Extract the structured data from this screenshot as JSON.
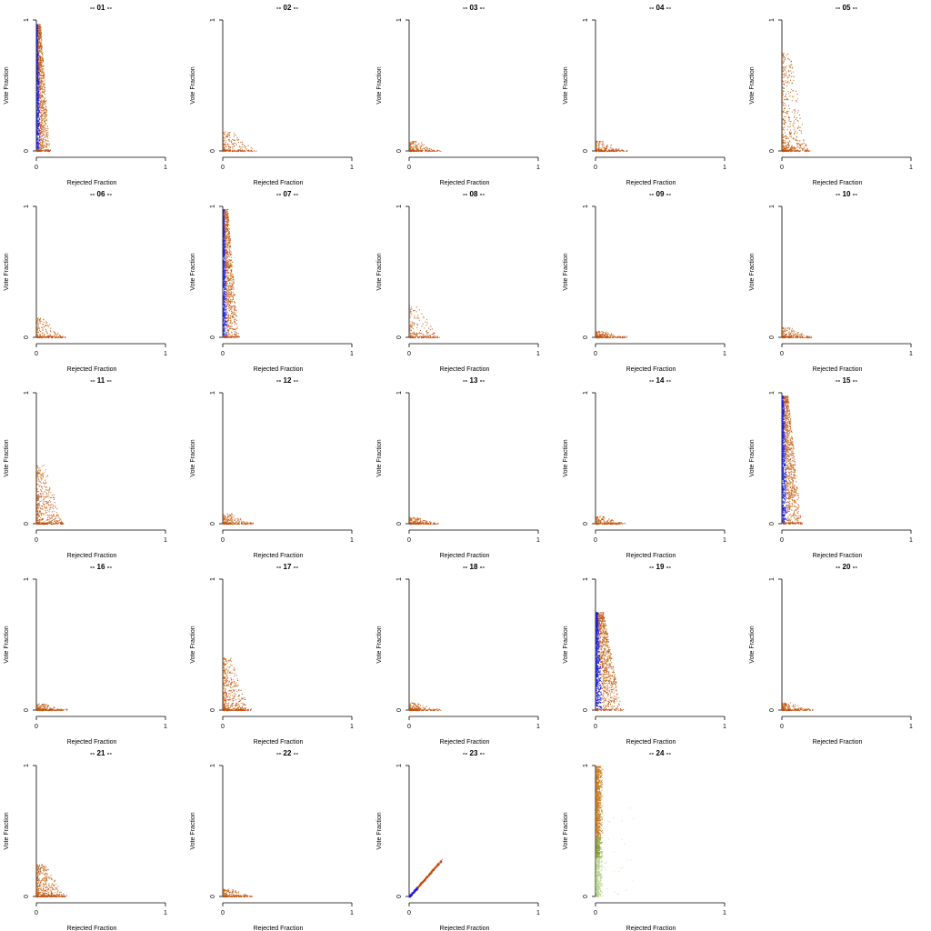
{
  "figure": {
    "panel_count": 24,
    "columns": 5,
    "point_palette": {
      "low_rejection": "#1f1fd6",
      "mid": "#c04a10",
      "high": "#c8781a",
      "light": "#b8d48c"
    }
  },
  "chart_data": [
    {
      "type": "scatter",
      "title": "-- 01 --",
      "xlabel": "Rejected Fraction",
      "ylabel": "Vote Fraction",
      "xlim": [
        0,
        1
      ],
      "ylim": [
        0,
        1
      ],
      "xticks": [
        "0",
        "1"
      ],
      "yticks": [
        "0",
        "1"
      ],
      "cluster": {
        "x_max": 0.1,
        "y_max": 0.97,
        "density": "high",
        "dominant_color": "blue-orange"
      }
    },
    {
      "type": "scatter",
      "title": "-- 02 --",
      "xlabel": "Rejected Fraction",
      "ylabel": "Vote Fraction",
      "xlim": [
        0,
        1
      ],
      "ylim": [
        0,
        1
      ],
      "xticks": [
        "0",
        "1"
      ],
      "yticks": [
        "0",
        "1"
      ],
      "cluster": {
        "x_max": 0.25,
        "y_max": 0.15,
        "density": "low",
        "dominant_color": "orange"
      }
    },
    {
      "type": "scatter",
      "title": "-- 03 --",
      "xlabel": "Rejected Fraction",
      "ylabel": "Vote Fraction",
      "xlim": [
        0,
        1
      ],
      "ylim": [
        0,
        1
      ],
      "xticks": [
        "0",
        "1"
      ],
      "yticks": [
        "0",
        "1"
      ],
      "cluster": {
        "x_max": 0.22,
        "y_max": 0.08,
        "density": "low",
        "dominant_color": "orange"
      }
    },
    {
      "type": "scatter",
      "title": "-- 04 --",
      "xlabel": "Rejected Fraction",
      "ylabel": "Vote Fraction",
      "xlim": [
        0,
        1
      ],
      "ylim": [
        0,
        1
      ],
      "xticks": [
        "0",
        "1"
      ],
      "yticks": [
        "0",
        "1"
      ],
      "cluster": {
        "x_max": 0.22,
        "y_max": 0.08,
        "density": "low",
        "dominant_color": "orange"
      }
    },
    {
      "type": "scatter",
      "title": "-- 05 --",
      "xlabel": "Rejected Fraction",
      "ylabel": "Vote Fraction",
      "xlim": [
        0,
        1
      ],
      "ylim": [
        0,
        1
      ],
      "xticks": [
        "0",
        "1"
      ],
      "yticks": [
        "0",
        "1"
      ],
      "cluster": {
        "x_max": 0.2,
        "y_max": 0.75,
        "density": "medium",
        "dominant_color": "orange"
      }
    },
    {
      "type": "scatter",
      "title": "-- 06 --",
      "xlabel": "Rejected Fraction",
      "ylabel": "Vote Fraction",
      "xlim": [
        0,
        1
      ],
      "ylim": [
        0,
        1
      ],
      "xticks": [
        "0",
        "1"
      ],
      "yticks": [
        "0",
        "1"
      ],
      "cluster": {
        "x_max": 0.2,
        "y_max": 0.15,
        "density": "low",
        "dominant_color": "orange"
      }
    },
    {
      "type": "scatter",
      "title": "-- 07 --",
      "xlabel": "Rejected Fraction",
      "ylabel": "Vote Fraction",
      "xlim": [
        0,
        1
      ],
      "ylim": [
        0,
        1
      ],
      "xticks": [
        "0",
        "1"
      ],
      "yticks": [
        "0",
        "1"
      ],
      "cluster": {
        "x_max": 0.12,
        "y_max": 0.98,
        "density": "high",
        "dominant_color": "blue-orange"
      }
    },
    {
      "type": "scatter",
      "title": "-- 08 --",
      "xlabel": "Rejected Fraction",
      "ylabel": "Vote Fraction",
      "xlim": [
        0,
        1
      ],
      "ylim": [
        0,
        1
      ],
      "xticks": [
        "0",
        "1"
      ],
      "yticks": [
        "0",
        "1"
      ],
      "cluster": {
        "x_max": 0.22,
        "y_max": 0.25,
        "density": "low",
        "dominant_color": "orange"
      }
    },
    {
      "type": "scatter",
      "title": "-- 09 --",
      "xlabel": "Rejected Fraction",
      "ylabel": "Vote Fraction",
      "xlim": [
        0,
        1
      ],
      "ylim": [
        0,
        1
      ],
      "xticks": [
        "0",
        "1"
      ],
      "yticks": [
        "0",
        "1"
      ],
      "cluster": {
        "x_max": 0.22,
        "y_max": 0.05,
        "density": "low",
        "dominant_color": "orange"
      }
    },
    {
      "type": "scatter",
      "title": "-- 10 --",
      "xlabel": "Rejected Fraction",
      "ylabel": "Vote Fraction",
      "xlim": [
        0,
        1
      ],
      "ylim": [
        0,
        1
      ],
      "xticks": [
        "0",
        "1"
      ],
      "yticks": [
        "0",
        "1"
      ],
      "cluster": {
        "x_max": 0.22,
        "y_max": 0.08,
        "density": "low",
        "dominant_color": "orange"
      }
    },
    {
      "type": "scatter",
      "title": "-- 11 --",
      "xlabel": "Rejected Fraction",
      "ylabel": "Vote Fraction",
      "xlim": [
        0,
        1
      ],
      "ylim": [
        0,
        1
      ],
      "xticks": [
        "0",
        "1"
      ],
      "yticks": [
        "0",
        "1"
      ],
      "cluster": {
        "x_max": 0.2,
        "y_max": 0.45,
        "density": "medium",
        "dominant_color": "orange"
      }
    },
    {
      "type": "scatter",
      "title": "-- 12 --",
      "xlabel": "Rejected Fraction",
      "ylabel": "Vote Fraction",
      "xlim": [
        0,
        1
      ],
      "ylim": [
        0,
        1
      ],
      "xticks": [
        "0",
        "1"
      ],
      "yticks": [
        "0",
        "1"
      ],
      "cluster": {
        "x_max": 0.22,
        "y_max": 0.08,
        "density": "low",
        "dominant_color": "orange"
      }
    },
    {
      "type": "scatter",
      "title": "-- 13 --",
      "xlabel": "Rejected Fraction",
      "ylabel": "Vote Fraction",
      "xlim": [
        0,
        1
      ],
      "ylim": [
        0,
        1
      ],
      "xticks": [
        "0",
        "1"
      ],
      "yticks": [
        "0",
        "1"
      ],
      "cluster": {
        "x_max": 0.22,
        "y_max": 0.05,
        "density": "low",
        "dominant_color": "orange"
      }
    },
    {
      "type": "scatter",
      "title": "-- 14 --",
      "xlabel": "Rejected Fraction",
      "ylabel": "Vote Fraction",
      "xlim": [
        0,
        1
      ],
      "ylim": [
        0,
        1
      ],
      "xticks": [
        "0",
        "1"
      ],
      "yticks": [
        "0",
        "1"
      ],
      "cluster": {
        "x_max": 0.22,
        "y_max": 0.06,
        "density": "low",
        "dominant_color": "orange"
      }
    },
    {
      "type": "scatter",
      "title": "-- 15 --",
      "xlabel": "Rejected Fraction",
      "ylabel": "Vote Fraction",
      "xlim": [
        0,
        1
      ],
      "ylim": [
        0,
        1
      ],
      "xticks": [
        "0",
        "1"
      ],
      "yticks": [
        "0",
        "1"
      ],
      "cluster": {
        "x_max": 0.15,
        "y_max": 0.98,
        "density": "high",
        "dominant_color": "blue-orange"
      }
    },
    {
      "type": "scatter",
      "title": "-- 16 --",
      "xlabel": "Rejected Fraction",
      "ylabel": "Vote Fraction",
      "xlim": [
        0,
        1
      ],
      "ylim": [
        0,
        1
      ],
      "xticks": [
        "0",
        "1"
      ],
      "yticks": [
        "0",
        "1"
      ],
      "cluster": {
        "x_max": 0.22,
        "y_max": 0.05,
        "density": "low",
        "dominant_color": "orange"
      }
    },
    {
      "type": "scatter",
      "title": "-- 17 --",
      "xlabel": "Rejected Fraction",
      "ylabel": "Vote Fraction",
      "xlim": [
        0,
        1
      ],
      "ylim": [
        0,
        1
      ],
      "xticks": [
        "0",
        "1"
      ],
      "yticks": [
        "0",
        "1"
      ],
      "cluster": {
        "x_max": 0.2,
        "y_max": 0.4,
        "density": "medium",
        "dominant_color": "orange"
      }
    },
    {
      "type": "scatter",
      "title": "-- 18 --",
      "xlabel": "Rejected Fraction",
      "ylabel": "Vote Fraction",
      "xlim": [
        0,
        1
      ],
      "ylim": [
        0,
        1
      ],
      "xticks": [
        "0",
        "1"
      ],
      "yticks": [
        "0",
        "1"
      ],
      "cluster": {
        "x_max": 0.22,
        "y_max": 0.06,
        "density": "low",
        "dominant_color": "orange"
      }
    },
    {
      "type": "scatter",
      "title": "-- 19 --",
      "xlabel": "Rejected Fraction",
      "ylabel": "Vote Fraction",
      "xlim": [
        0,
        1
      ],
      "ylim": [
        0,
        1
      ],
      "xticks": [
        "0",
        "1"
      ],
      "yticks": [
        "0",
        "1"
      ],
      "cluster": {
        "x_max": 0.2,
        "y_max": 0.75,
        "density": "high",
        "dominant_color": "blue-orange"
      }
    },
    {
      "type": "scatter",
      "title": "-- 20 --",
      "xlabel": "Rejected Fraction",
      "ylabel": "Vote Fraction",
      "xlim": [
        0,
        1
      ],
      "ylim": [
        0,
        1
      ],
      "xticks": [
        "0",
        "1"
      ],
      "yticks": [
        "0",
        "1"
      ],
      "cluster": {
        "x_max": 0.22,
        "y_max": 0.06,
        "density": "low",
        "dominant_color": "orange"
      }
    },
    {
      "type": "scatter",
      "title": "-- 21 --",
      "xlabel": "Rejected Fraction",
      "ylabel": "Vote Fraction",
      "xlim": [
        0,
        1
      ],
      "ylim": [
        0,
        1
      ],
      "xticks": [
        "0",
        "1"
      ],
      "yticks": [
        "0",
        "1"
      ],
      "cluster": {
        "x_max": 0.22,
        "y_max": 0.25,
        "density": "medium",
        "dominant_color": "orange"
      }
    },
    {
      "type": "scatter",
      "title": "-- 22 --",
      "xlabel": "Rejected Fraction",
      "ylabel": "Vote Fraction",
      "xlim": [
        0,
        1
      ],
      "ylim": [
        0,
        1
      ],
      "xticks": [
        "0",
        "1"
      ],
      "yticks": [
        "0",
        "1"
      ],
      "cluster": {
        "x_max": 0.22,
        "y_max": 0.06,
        "density": "low",
        "dominant_color": "orange"
      }
    },
    {
      "type": "scatter",
      "title": "-- 23 --",
      "xlabel": "Rejected Fraction",
      "ylabel": "Vote Fraction",
      "xlim": [
        0,
        1
      ],
      "ylim": [
        0,
        1
      ],
      "xticks": [
        "0",
        "1"
      ],
      "yticks": [
        "0",
        "1"
      ],
      "cluster": {
        "shape": "diagonal",
        "x_max": 0.25,
        "y_max": 0.28,
        "density": "medium",
        "dominant_color": "blue-orange"
      }
    },
    {
      "type": "scatter",
      "title": "-- 24 --",
      "xlabel": "Rejected Fraction",
      "ylabel": "Vote Fraction",
      "xlim": [
        0,
        1
      ],
      "ylim": [
        0,
        1
      ],
      "xticks": [
        "0",
        "1"
      ],
      "yticks": [
        "0",
        "1"
      ],
      "cluster": {
        "shape": "column",
        "x_max": 0.08,
        "y_max": 1.0,
        "density": "high",
        "dominant_color": "orange-green"
      }
    }
  ]
}
